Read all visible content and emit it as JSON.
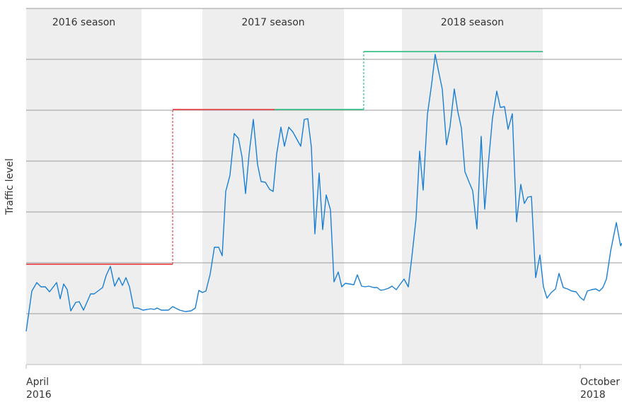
{
  "chart_data": {
    "type": "line",
    "y_label": "Traffic level",
    "xlim": [
      0,
      842
    ],
    "ylim": [
      0,
      504
    ],
    "yticks": [
      0,
      72,
      144,
      216,
      288,
      360,
      432,
      504
    ],
    "xticks": [
      {
        "value": 0,
        "label": [
          "April",
          "2016"
        ]
      },
      {
        "value": 783,
        "label": [
          "October",
          "2018"
        ]
      }
    ],
    "grid": true,
    "regions": [
      {
        "label": "2016 season",
        "x": [
          0,
          163
        ],
        "color": "#eeeeee"
      },
      {
        "label": "2017 season",
        "x": [
          249,
          449
        ],
        "color": "#eeeeee"
      },
      {
        "label": "2018 season",
        "x": [
          531,
          730
        ],
        "color": "#eeeeee"
      }
    ],
    "thresholds": [
      {
        "color": "#e8474b",
        "x": [
          0,
          207,
          207,
          351
        ],
        "values": [
          142,
          142,
          361,
          361
        ]
      },
      {
        "color": "#3cbf8a",
        "x": [
          351,
          477,
          477,
          730
        ],
        "values": [
          361,
          361,
          443,
          443
        ]
      }
    ],
    "series": [
      {
        "color": "#1a7fd4",
        "x": [
          0,
          8,
          15,
          21,
          27,
          33,
          43,
          48,
          53,
          58,
          63,
          70,
          75,
          81,
          91,
          96,
          108,
          113,
          119,
          125,
          131,
          136,
          141,
          146,
          152,
          158,
          165,
          171,
          176,
          181,
          185,
          191,
          201,
          207,
          217,
          225,
          233,
          239,
          244,
          249,
          254,
          260,
          266,
          272,
          277,
          282,
          288,
          294,
          300,
          305,
          310,
          315,
          321,
          327,
          332,
          338,
          344,
          349,
          354,
          360,
          365,
          371,
          377,
          383,
          388,
          393,
          398,
          403,
          408,
          414,
          419,
          424,
          430,
          435,
          441,
          446,
          451,
          457,
          463,
          468,
          474,
          479,
          484,
          491,
          496,
          501,
          506,
          512,
          517,
          523,
          528,
          534,
          540,
          545,
          551,
          556,
          561,
          567,
          573,
          578,
          583,
          588,
          594,
          599,
          605,
          610,
          615,
          620,
          626,
          631,
          637,
          643,
          648,
          653,
          659,
          665,
          670,
          676,
          681,
          687,
          693,
          699,
          704,
          709,
          714,
          720,
          726,
          731,
          736,
          742,
          748,
          753,
          759,
          765,
          771,
          777,
          783,
          788,
          793,
          799,
          805,
          810,
          815,
          820,
          826,
          834,
          840,
          842
        ],
        "values": [
          47,
          104,
          116,
          110,
          110,
          103,
          116,
          93,
          114,
          106,
          76,
          88,
          89,
          77,
          100,
          100,
          109,
          126,
          139,
          111,
          123,
          112,
          123,
          110,
          80,
          80,
          77,
          78,
          79,
          78,
          80,
          77,
          77,
          82,
          77,
          75,
          76,
          80,
          105,
          102,
          104,
          128,
          166,
          166,
          154,
          245,
          268,
          327,
          320,
          294,
          242,
          298,
          347,
          283,
          259,
          258,
          248,
          245,
          298,
          336,
          309,
          336,
          329,
          318,
          309,
          347,
          348,
          308,
          185,
          271,
          191,
          240,
          219,
          117,
          131,
          110,
          115,
          114,
          113,
          127,
          111,
          110,
          111,
          109,
          109,
          105,
          106,
          108,
          111,
          106,
          113,
          121,
          110,
          152,
          207,
          302,
          247,
          354,
          397,
          439,
          414,
          390,
          311,
          337,
          390,
          358,
          335,
          273,
          258,
          246,
          192,
          323,
          220,
          283,
          349,
          387,
          364,
          365,
          333,
          355,
          202,
          255,
          228,
          237,
          238,
          123,
          155,
          110,
          94,
          102,
          107,
          129,
          109,
          107,
          104,
          103,
          95,
          91,
          104,
          106,
          107,
          104,
          109,
          121,
          161,
          201,
          168,
          172
        ]
      }
    ]
  }
}
